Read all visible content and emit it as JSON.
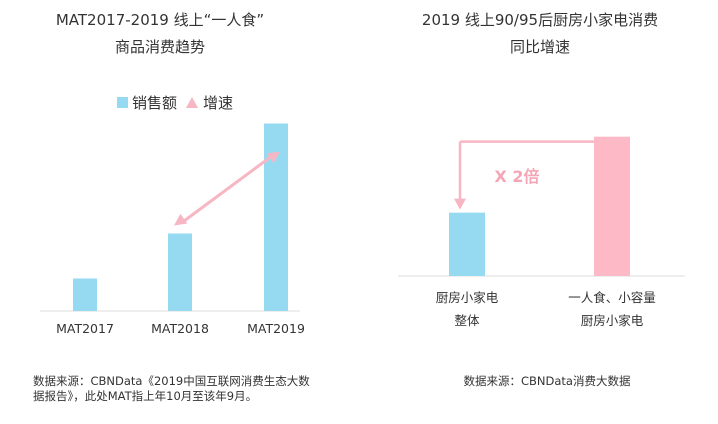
{
  "chart_data": [
    {
      "type": "bar",
      "title_lines": [
        "MAT2017-2019 线上“一人食”",
        "商品消费趋势"
      ],
      "legend": [
        {
          "label": "销售额",
          "marker": "square",
          "color": "#96DAF2"
        },
        {
          "label": "增速",
          "marker": "triangle",
          "color": "#F6B6C4"
        }
      ],
      "categories": [
        "MAT2017",
        "MAT2018",
        "MAT2019"
      ],
      "series": [
        {
          "name": "销售额",
          "values": [
            0.26,
            0.62,
            1.5
          ],
          "color": "#96DAF2"
        }
      ],
      "ylim": [
        0,
        1.6
      ],
      "annotation": {
        "type": "arrow",
        "from_category": "MAT2018",
        "to_category": "MAT2019",
        "color": "#F6B6C4"
      },
      "source_lines": [
        "数据来源：CBNData《2019中国互联网消费生态大数",
        "据报告》，此处MAT指上年10月至该年9月。"
      ]
    },
    {
      "type": "bar",
      "title_lines": [
        "2019 线上90/95后厨房小家电消费",
        "同比增速"
      ],
      "categories": [
        {
          "lines": [
            "厨房小家电",
            "整体"
          ]
        },
        {
          "lines": [
            "一人食、小容量",
            "厨房小家电"
          ]
        }
      ],
      "values": [
        1,
        2.2
      ],
      "colors": [
        "#96DAF2",
        "#FDB9C5"
      ],
      "ylim": [
        0,
        2.4
      ],
      "annotation": {
        "label": "X 2倍",
        "color": "#F6B6C4"
      },
      "source_lines": [
        "数据来源：CBNData消费大数据"
      ]
    }
  ]
}
